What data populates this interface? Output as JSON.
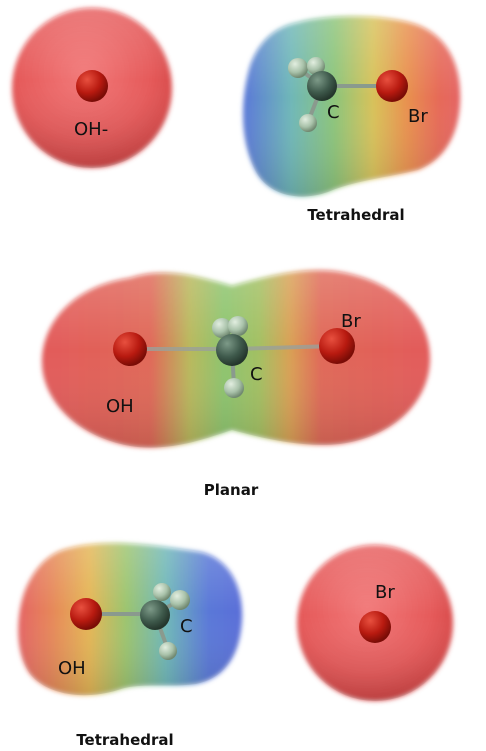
{
  "stages": [
    {
      "label": "",
      "reactant_label": "OH-",
      "substrate_labels": {
        "carbon": "C",
        "bromine": "Br"
      },
      "substrate_caption": "Tetrahedral"
    },
    {
      "label": "",
      "labels": {
        "hydroxyl": "OH",
        "carbon": "C",
        "bromine": "Br"
      },
      "caption": "Planar"
    },
    {
      "label": "",
      "product_labels": {
        "hydroxyl": "OH",
        "carbon": "C"
      },
      "product_caption": "Tetrahedral",
      "leaving_label": "Br"
    }
  ],
  "colors": {
    "negative_surface": "#e55a5a",
    "positive_surface": "#5a78d8",
    "neutral_surface": "#8cc47a",
    "oxygen_bromine_atom": "#b81a10",
    "carbon_atom": "#3f5a4c",
    "hydrogen_atom": "#a9c2aa"
  }
}
